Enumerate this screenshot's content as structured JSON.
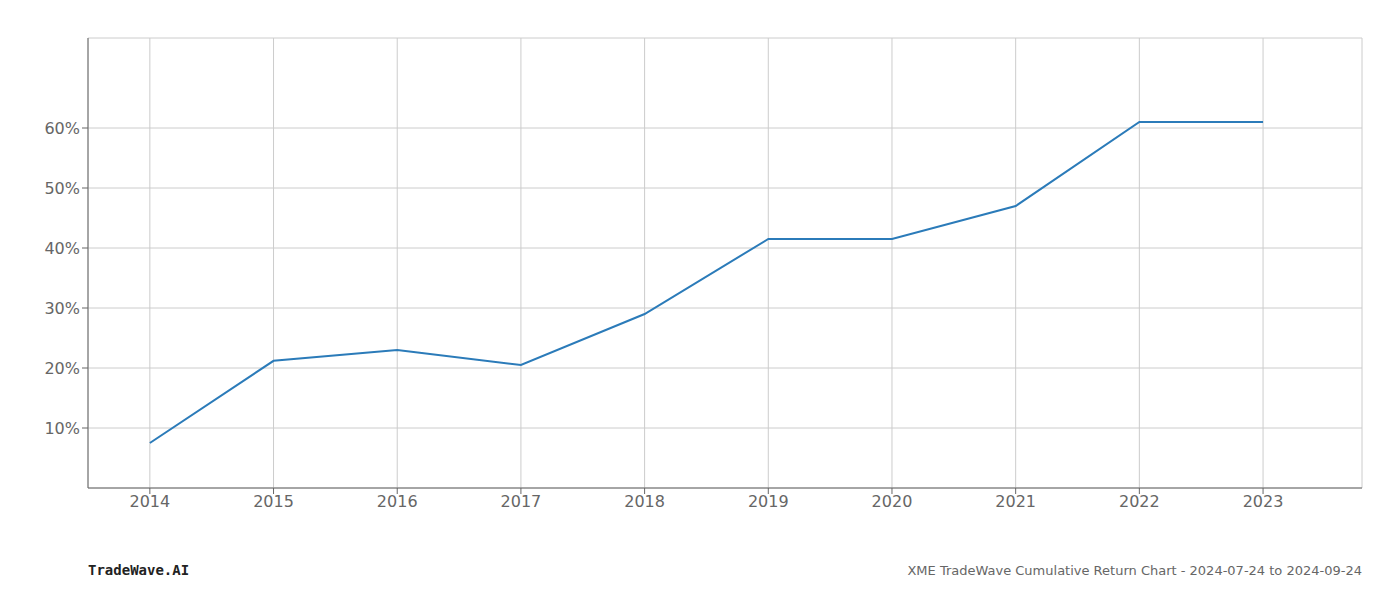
{
  "chart_data": {
    "type": "line",
    "title": "XME TradeWave Cumulative Return Chart - 2024-07-24 to 2024-09-24",
    "annotations": [
      "TradeWave.AI"
    ],
    "x": [
      2014,
      2015,
      2016,
      2017,
      2018,
      2019,
      2020,
      2021,
      2022,
      2023
    ],
    "values": [
      7.5,
      21.2,
      23.0,
      20.5,
      29.0,
      41.5,
      41.5,
      47.0,
      61.0,
      61.0
    ],
    "color": "#2b7bb9",
    "xlim": [
      2013.5,
      2023.8
    ],
    "xticks": [
      2014,
      2015,
      2016,
      2017,
      2018,
      2019,
      2020,
      2021,
      2022,
      2023
    ],
    "ylim": [
      0,
      75
    ],
    "yticks": [
      {
        "value": 10,
        "label": "10%"
      },
      {
        "value": 20,
        "label": "20%"
      },
      {
        "value": 30,
        "label": "30%"
      },
      {
        "value": 40,
        "label": "40%"
      },
      {
        "value": 50,
        "label": "50%"
      },
      {
        "value": 60,
        "label": "60%"
      }
    ],
    "grid": true
  }
}
